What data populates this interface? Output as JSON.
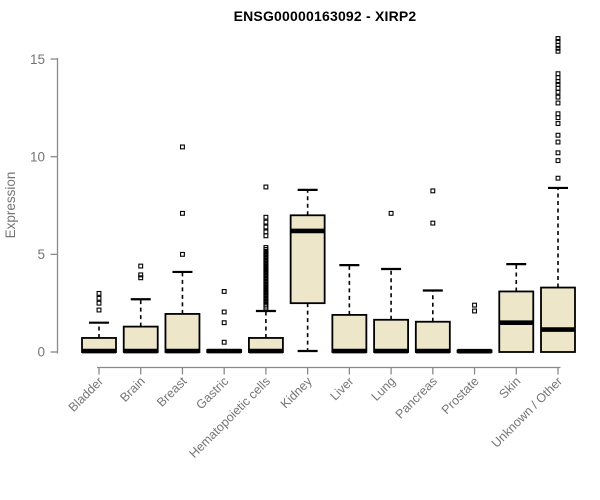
{
  "chart_data": {
    "type": "boxplot",
    "title": "ENSG00000163092 - XIRP2",
    "xlabel": "",
    "ylabel": "Expression",
    "yticks": [
      0,
      5,
      10,
      15
    ],
    "ylim": [
      -0.3,
      16.3
    ],
    "grid": false,
    "legend": "none",
    "categories": [
      "Bladder",
      "Brain",
      "Breast",
      "Gastric",
      "Hematopoietic cells",
      "Kidney",
      "Liver",
      "Lung",
      "Pancreas",
      "Prostate",
      "Skin",
      "Unknown / Other"
    ],
    "boxes": [
      {
        "category": "Bladder",
        "whisker_low": 0,
        "q1": 0,
        "median": 0.05,
        "q3": 0.72,
        "whisker_high": 1.5,
        "outliers": [
          2.15,
          2.5,
          2.75,
          3.0
        ]
      },
      {
        "category": "Brain",
        "whisker_low": 0,
        "q1": 0,
        "median": 0.05,
        "q3": 1.3,
        "whisker_high": 2.7,
        "outliers": [
          3.8,
          3.95,
          4.4
        ]
      },
      {
        "category": "Breast",
        "whisker_low": 0,
        "q1": 0,
        "median": 0.05,
        "q3": 1.95,
        "whisker_high": 4.1,
        "outliers": [
          5.0,
          7.1,
          10.5
        ]
      },
      {
        "category": "Gastric",
        "whisker_low": 0,
        "q1": 0,
        "median": 0.05,
        "q3": 0.1,
        "whisker_high": 0.1,
        "outliers": [
          0.5,
          1.5,
          2.05,
          3.1
        ]
      },
      {
        "category": "Hematopoietic cells",
        "whisker_low": 0,
        "q1": 0,
        "median": 0.05,
        "q3": 0.72,
        "whisker_high": 2.1,
        "outliers": [
          2.25,
          2.35,
          2.45,
          2.55,
          2.6,
          2.7,
          2.75,
          2.85,
          2.9,
          3.0,
          3.05,
          3.15,
          3.2,
          3.3,
          3.35,
          3.45,
          3.5,
          3.6,
          3.65,
          3.75,
          3.8,
          3.9,
          3.95,
          4.05,
          4.1,
          4.2,
          4.25,
          4.35,
          4.4,
          4.5,
          4.55,
          4.65,
          4.7,
          4.8,
          4.85,
          4.95,
          5.0,
          5.1,
          5.15,
          5.25,
          5.35,
          5.95,
          6.15,
          6.4,
          6.65,
          6.9,
          8.45
        ]
      },
      {
        "category": "Kidney",
        "whisker_low": 0.05,
        "q1": 2.5,
        "median": 6.2,
        "q3": 7.0,
        "whisker_high": 8.3,
        "outliers": []
      },
      {
        "category": "Liver",
        "whisker_low": 0,
        "q1": 0,
        "median": 0.05,
        "q3": 1.9,
        "whisker_high": 4.45,
        "outliers": []
      },
      {
        "category": "Lung",
        "whisker_low": 0,
        "q1": 0,
        "median": 0.05,
        "q3": 1.65,
        "whisker_high": 4.25,
        "outliers": [
          7.1
        ]
      },
      {
        "category": "Pancreas",
        "whisker_low": 0,
        "q1": 0,
        "median": 0.05,
        "q3": 1.55,
        "whisker_high": 3.15,
        "outliers": [
          6.6,
          8.25
        ]
      },
      {
        "category": "Prostate",
        "whisker_low": 0,
        "q1": 0,
        "median": 0.04,
        "q3": 0.08,
        "whisker_high": 0.08,
        "outliers": [
          2.1,
          2.4
        ]
      },
      {
        "category": "Skin",
        "whisker_low": 0,
        "q1": 0,
        "median": 1.5,
        "q3": 3.1,
        "whisker_high": 4.5,
        "outliers": []
      },
      {
        "category": "Unknown / Other",
        "whisker_low": 0,
        "q1": 0,
        "median": 1.15,
        "q3": 3.3,
        "whisker_high": 8.4,
        "outliers": [
          8.9,
          9.8,
          10.2,
          10.75,
          11.1,
          11.7,
          12.0,
          12.2,
          12.75,
          13.05,
          13.3,
          13.5,
          13.7,
          13.85,
          14.05,
          14.25,
          15.4,
          15.55,
          15.7,
          15.9,
          16.05
        ]
      }
    ],
    "colors": {
      "box_fill": "#EDE6C9",
      "box_stroke": "#000000",
      "median": "#000000",
      "whisker": "#000000",
      "outlier": "#000000",
      "axis": "#8a8a8a",
      "tick_label": "#757575",
      "title": "#000000",
      "background": "#ffffff"
    }
  }
}
